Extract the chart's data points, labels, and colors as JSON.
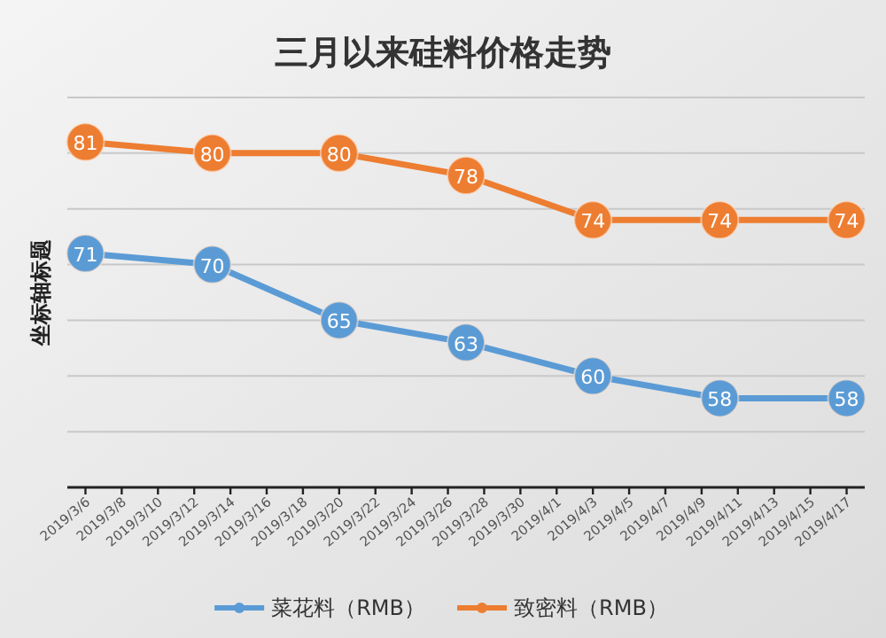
{
  "chart_data": {
    "type": "line",
    "title": "三月以来硅料价格走势",
    "ylabel": "坐标轴标题",
    "x": [
      "2019-03-06",
      "2019-03-13",
      "2019-03-20",
      "2019-03-27",
      "2019-04-03",
      "2019-04-10",
      "2019-04-17"
    ],
    "series": [
      {
        "name": "菜花料（RMB）",
        "color": "#5b9bd5",
        "values": [
          71,
          70,
          65,
          63,
          60,
          58,
          58
        ]
      },
      {
        "name": "致密料（RMB）",
        "color": "#ed7d31",
        "values": [
          81,
          80,
          80,
          78,
          74,
          74,
          74
        ]
      }
    ],
    "xlim": [
      "2019-03-05",
      "2019-04-18"
    ],
    "xticks": [
      {
        "value": "2019-03-06",
        "label": "2019/3/6"
      },
      {
        "value": "2019-03-08",
        "label": "2019/3/8"
      },
      {
        "value": "2019-03-10",
        "label": "2019/3/10"
      },
      {
        "value": "2019-03-12",
        "label": "2019/3/12"
      },
      {
        "value": "2019-03-14",
        "label": "2019/3/14"
      },
      {
        "value": "2019-03-16",
        "label": "2019/3/16"
      },
      {
        "value": "2019-03-18",
        "label": "2019/3/18"
      },
      {
        "value": "2019-03-20",
        "label": "2019/3/20"
      },
      {
        "value": "2019-03-22",
        "label": "2019/3/22"
      },
      {
        "value": "2019-03-24",
        "label": "2019/3/24"
      },
      {
        "value": "2019-03-26",
        "label": "2019/3/26"
      },
      {
        "value": "2019-03-28",
        "label": "2019/3/28"
      },
      {
        "value": "2019-03-30",
        "label": "2019/3/30"
      },
      {
        "value": "2019-04-01",
        "label": "2019/4/1"
      },
      {
        "value": "2019-04-03",
        "label": "2019/4/3"
      },
      {
        "value": "2019-04-05",
        "label": "2019/4/5"
      },
      {
        "value": "2019-04-07",
        "label": "2019/4/7"
      },
      {
        "value": "2019-04-09",
        "label": "2019/4/9"
      },
      {
        "value": "2019-04-11",
        "label": "2019/4/11"
      },
      {
        "value": "2019-04-13",
        "label": "2019/4/13"
      },
      {
        "value": "2019-04-15",
        "label": "2019/4/15"
      },
      {
        "value": "2019-04-17",
        "label": "2019/4/17"
      }
    ],
    "ylim": [
      50,
      85
    ],
    "yticks": [
      {
        "value": 55,
        "label": null
      },
      {
        "value": 60,
        "label": null
      },
      {
        "value": 65,
        "label": null
      },
      {
        "value": 70,
        "label": null
      },
      {
        "value": 75,
        "label": null
      },
      {
        "value": 80,
        "label": null
      },
      {
        "value": 85,
        "label": null
      }
    ],
    "grid": "y",
    "tick_labels": "x",
    "legend": "bottom",
    "marker": "circle",
    "line_style": "solid",
    "data_labels": true
  }
}
